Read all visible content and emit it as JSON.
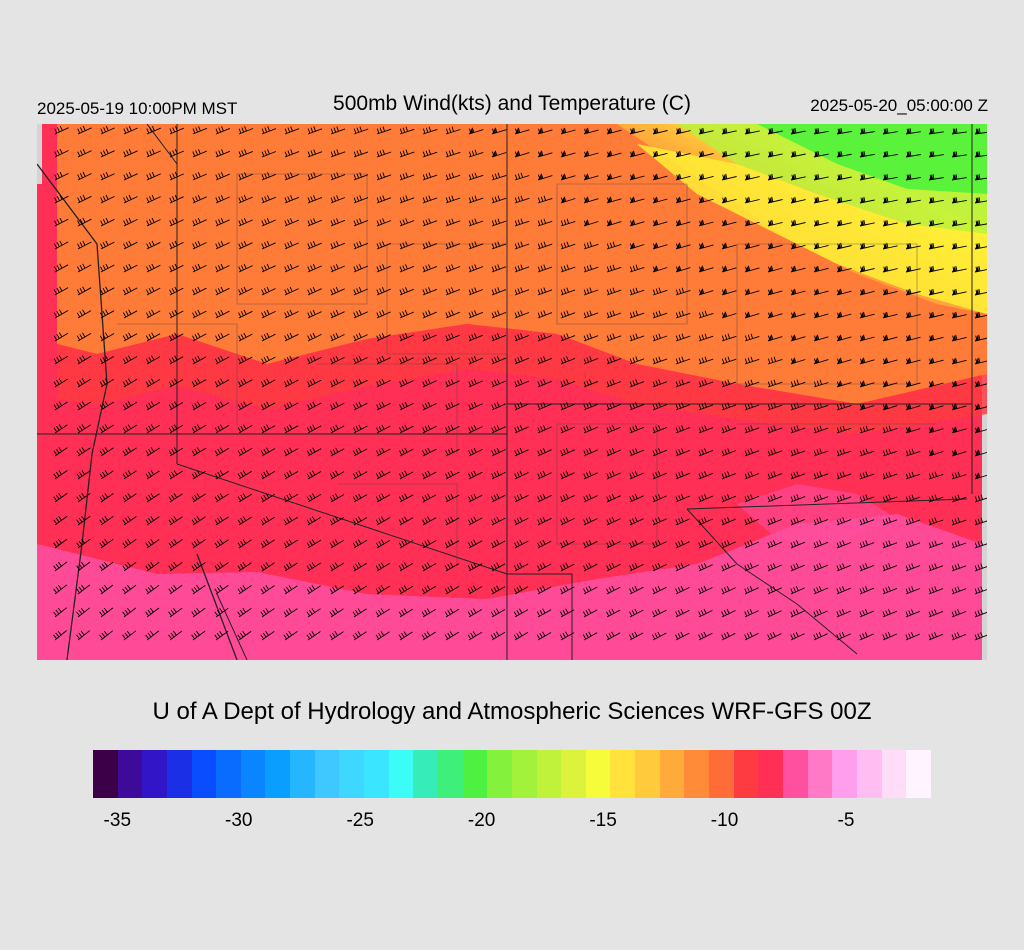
{
  "header": {
    "valid_local": "2025-05-19 10:00PM MST",
    "title": "500mb Wind(kts) and Temperature (C)",
    "valid_utc": "2025-05-20_05:00:00 Z"
  },
  "footer": {
    "credit": "U of A Dept of Hydrology and Atmospheric Sciences WRF-GFS 00Z"
  },
  "colors": {
    "pink": "#ff4f9f",
    "crimson": "#ff2f55",
    "red": "#ff3b42",
    "orange": "#ff7b38",
    "orange_light": "#ffab3b",
    "yellow": "#ffef36",
    "lime": "#b8f23c",
    "green": "#5af23a",
    "background": "#e4e4e4",
    "map_bg": "#d4d4d4"
  },
  "colorbar": {
    "colors": [
      "#3c0049",
      "#3e0a9a",
      "#3315c8",
      "#1a2fe6",
      "#0a4dff",
      "#0a6bff",
      "#0a85ff",
      "#0a9eff",
      "#25b6ff",
      "#3fc8ff",
      "#3ed7ff",
      "#3ae6ff",
      "#3cfdf5",
      "#36ecb8",
      "#3ef079",
      "#4ef041",
      "#84f23c",
      "#a2f23c",
      "#c0f23c",
      "#dcf23c",
      "#f7fc3a",
      "#ffe23b",
      "#ffca3b",
      "#ffab3b",
      "#ff8a38",
      "#ff6c38",
      "#ff3b42",
      "#ff2f55",
      "#ff4f9f",
      "#ff79c6",
      "#ff9eed",
      "#ffbdf2",
      "#ffdcf8",
      "#fff4ff"
    ],
    "ticks": [
      "-35",
      "-30",
      "-25",
      "-20",
      "-15",
      "-10",
      "-5"
    ],
    "tick_values": [
      -35,
      -30,
      -25,
      -20,
      -15,
      -10,
      -5
    ],
    "range": [
      -36,
      -1.5
    ]
  },
  "map": {
    "wind_barbs": "dense westerly/northwesterly barbs, increasing speed to the northeast",
    "temperature_regions": [
      "pink (south)",
      "crimson (central)",
      "orange (north)",
      "yellow/green (northeast)"
    ]
  }
}
